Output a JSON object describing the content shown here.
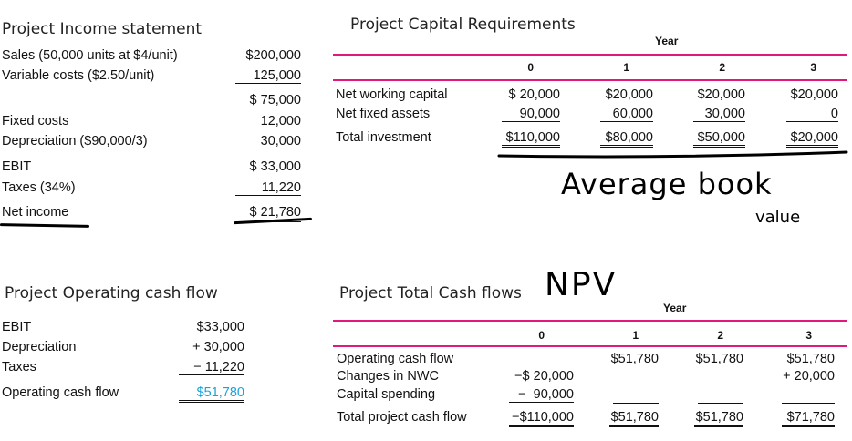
{
  "income": {
    "title": "Project Income statement",
    "rows": [
      {
        "label": "Sales (50,000 units at $4/unit)",
        "value": "$200,000"
      },
      {
        "label": "Variable costs ($2.50/unit)",
        "value": "125,000"
      },
      {
        "label": "",
        "value": "$ 75,000"
      },
      {
        "label": "Fixed costs",
        "value": "12,000"
      },
      {
        "label": "Depreciation ($90,000/3)",
        "value": "30,000"
      },
      {
        "label": "EBIT",
        "value": "$ 33,000"
      },
      {
        "label": "Taxes (34%)",
        "value": "11,220"
      },
      {
        "label": "Net income",
        "value": "$ 21,780"
      }
    ]
  },
  "capital": {
    "title": "Project Capital Requirements",
    "year_label": "Year",
    "years": [
      "0",
      "1",
      "2",
      "3"
    ],
    "rows": [
      {
        "label": "Net working capital",
        "values": [
          "$ 20,000",
          "$20,000",
          "$20,000",
          "$20,000"
        ]
      },
      {
        "label": "Net fixed assets",
        "values": [
          "90,000",
          "60,000",
          "30,000",
          "0"
        ]
      },
      {
        "label": "Total investment",
        "values": [
          "$110,000",
          "$80,000",
          "$50,000",
          "$20,000"
        ]
      }
    ]
  },
  "annotations": {
    "average_book": "Average book",
    "value": "value",
    "npv": "NPV"
  },
  "ocf": {
    "title": "Project Operating cash flow",
    "rows": [
      {
        "label": "EBIT",
        "value": "$33,000"
      },
      {
        "label": "Depreciation",
        "value": "+ 30,000"
      },
      {
        "label": "Taxes",
        "value": "− 11,220"
      },
      {
        "label": "Operating cash flow",
        "value": "$51,780"
      }
    ],
    "highlight_color": "#1aa3d9"
  },
  "total": {
    "title": "Project Total Cash flows",
    "year_label": "Year",
    "years": [
      "0",
      "1",
      "2",
      "3"
    ],
    "rows": [
      {
        "label": "Operating cash flow",
        "values": [
          "",
          "$51,780",
          "$51,780",
          "$51,780"
        ]
      },
      {
        "label": "Changes in NWC",
        "values": [
          "−$ 20,000",
          "",
          "",
          "+ 20,000"
        ]
      },
      {
        "label": "Capital spending",
        "values": [
          "−  90,000",
          "",
          "",
          ""
        ]
      },
      {
        "label": "Total project cash flow",
        "values": [
          "−$110,000",
          "$51,780",
          "$51,780",
          "$71,780"
        ]
      }
    ]
  },
  "accent_color": "#e0197d"
}
